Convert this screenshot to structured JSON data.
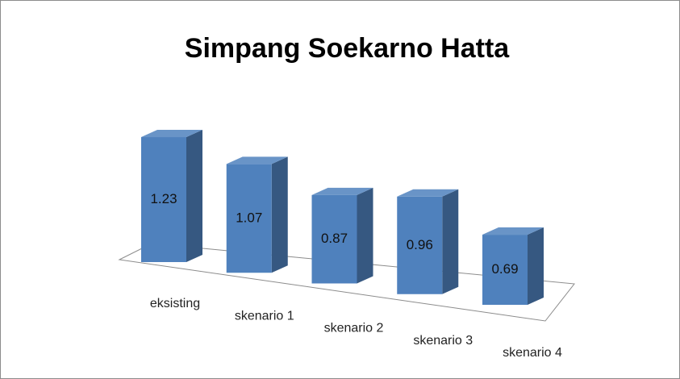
{
  "chart_data": {
    "type": "bar3d",
    "title": "Simpang Soekarno Hatta",
    "categories": [
      "eksisting",
      "skenario 1",
      "skenario 2",
      "skenario 3",
      "skenario 4"
    ],
    "values": [
      1.23,
      1.07,
      0.87,
      0.96,
      0.69
    ],
    "color": "#4f81bd"
  }
}
